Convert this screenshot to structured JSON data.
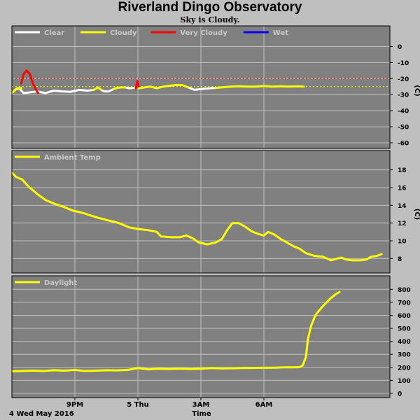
{
  "header": {
    "title": "Riverland Dingo Observatory",
    "subtitle": "Sky is Cloudy."
  },
  "footer": {
    "date_label": "4 Wed May 2016",
    "x_title": "Time"
  },
  "colors": {
    "background": "#bfbfbf",
    "plot_bg": "#808080",
    "grid": "#bfbfbf",
    "clear": "#ffffff",
    "cloudy": "#ffff00",
    "very_cloudy": "#ff0000",
    "wet": "#0000ff"
  },
  "chart_data": [
    {
      "type": "line",
      "name": "sky-temperature",
      "ylabel": "(C)",
      "ylim": [
        -60,
        5
      ],
      "yticks": [
        0,
        -10,
        -20,
        -30,
        -40,
        -50,
        -60
      ],
      "thresholds": [
        {
          "value": -20,
          "color": "#ff0000"
        },
        {
          "value": -25,
          "color": "#ffff00"
        }
      ],
      "legend": [
        {
          "label": "Clear",
          "color": "#ffffff"
        },
        {
          "label": "Cloudy",
          "color": "#ffff00"
        },
        {
          "label": "Very Cloudy",
          "color": "#ff0000"
        },
        {
          "label": "Wet",
          "color": "#0000ff"
        }
      ],
      "series": [
        {
          "name": "Clear",
          "color": "#ffffff",
          "segments": [
            [
              [
                18.0,
                -29
              ],
              [
                18.15,
                -27
              ],
              [
                18.35,
                -26
              ],
              [
                18.55,
                -29
              ],
              [
                18.9,
                -28.5
              ],
              [
                19.2,
                -28
              ],
              [
                19.6,
                -29
              ],
              [
                20.0,
                -27.5
              ],
              [
                20.4,
                -28
              ],
              [
                20.8,
                -28.2
              ],
              [
                21.2,
                -27
              ],
              [
                21.6,
                -27.5
              ],
              [
                21.9,
                -27
              ]
            ],
            [
              [
                22.25,
                -27
              ],
              [
                22.4,
                -28
              ],
              [
                22.6,
                -28
              ],
              [
                22.85,
                -26.5
              ]
            ],
            [
              [
                23.4,
                -25.5
              ],
              [
                23.6,
                -26
              ],
              [
                23.9,
                -25.6
              ]
            ],
            [
              [
                26.4,
                -25.5
              ],
              [
                26.7,
                -27
              ],
              [
                27.0,
                -26.5
              ],
              [
                27.4,
                -26
              ],
              [
                27.7,
                -25.8
              ]
            ]
          ]
        },
        {
          "name": "Very Cloudy",
          "color": "#ff0000",
          "segments": [
            [
              [
                18.45,
                -23
              ],
              [
                18.55,
                -17.5
              ],
              [
                18.7,
                -15
              ],
              [
                18.85,
                -17
              ],
              [
                19.0,
                -23
              ],
              [
                19.15,
                -27
              ],
              [
                19.25,
                -29
              ]
            ],
            [
              [
                23.9,
                -26
              ],
              [
                23.98,
                -21.5
              ],
              [
                24.05,
                -26
              ]
            ]
          ]
        },
        {
          "name": "Cloudy",
          "color": "#ffff00",
          "segments": [
            [
              [
                18.0,
                -29
              ],
              [
                18.2,
                -26.5
              ],
              [
                18.3,
                -25.8
              ],
              [
                18.45,
                -26
              ]
            ],
            [
              [
                21.9,
                -27
              ],
              [
                22.1,
                -25.5
              ],
              [
                22.25,
                -27
              ]
            ],
            [
              [
                22.85,
                -26.5
              ],
              [
                23.0,
                -25.8
              ],
              [
                23.2,
                -25.5
              ],
              [
                23.4,
                -25.5
              ]
            ],
            [
              [
                24.05,
                -26
              ],
              [
                24.3,
                -25.5
              ],
              [
                24.6,
                -25
              ],
              [
                24.9,
                -26
              ],
              [
                25.2,
                -25
              ],
              [
                25.5,
                -24.5
              ],
              [
                25.8,
                -24
              ],
              [
                26.1,
                -24
              ],
              [
                26.4,
                -25.5
              ]
            ],
            [
              [
                27.7,
                -25.8
              ],
              [
                28.0,
                -25.5
              ],
              [
                28.4,
                -25
              ],
              [
                28.8,
                -24.8
              ],
              [
                29.2,
                -25
              ],
              [
                29.6,
                -25
              ],
              [
                30.0,
                -24.6
              ],
              [
                30.4,
                -25
              ],
              [
                30.8,
                -24.8
              ],
              [
                31.2,
                -25
              ],
              [
                31.6,
                -24.8
              ],
              [
                31.9,
                -25
              ]
            ]
          ]
        }
      ]
    },
    {
      "type": "line",
      "name": "ambient-temperature",
      "ylabel": "(C)",
      "ylim": [
        7,
        19
      ],
      "yticks": [
        8,
        10,
        12,
        14,
        16,
        18
      ],
      "legend": [
        {
          "label": "Ambient Temp",
          "color": "#ffff00"
        }
      ],
      "series": [
        {
          "name": "Ambient Temp",
          "color": "#ffff00",
          "points": [
            [
              18.0,
              17.7
            ],
            [
              18.2,
              17.2
            ],
            [
              18.5,
              16.9
            ],
            [
              18.8,
              16.1
            ],
            [
              19.2,
              15.3
            ],
            [
              19.6,
              14.6
            ],
            [
              20.0,
              14.2
            ],
            [
              20.5,
              13.8
            ],
            [
              20.9,
              13.4
            ],
            [
              21.3,
              13.2
            ],
            [
              21.7,
              12.9
            ],
            [
              22.1,
              12.6
            ],
            [
              22.6,
              12.3
            ],
            [
              23.1,
              12.0
            ],
            [
              23.6,
              11.5
            ],
            [
              24.1,
              11.3
            ],
            [
              24.5,
              11.2
            ],
            [
              24.9,
              11.0
            ],
            [
              25.1,
              10.5
            ],
            [
              25.6,
              10.4
            ],
            [
              26.0,
              10.4
            ],
            [
              26.3,
              10.6
            ],
            [
              26.6,
              10.3
            ],
            [
              26.9,
              9.8
            ],
            [
              27.3,
              9.6
            ],
            [
              27.7,
              9.8
            ],
            [
              28.0,
              10.2
            ],
            [
              28.25,
              11.2
            ],
            [
              28.5,
              12.0
            ],
            [
              28.8,
              12.0
            ],
            [
              29.1,
              11.6
            ],
            [
              29.4,
              11.1
            ],
            [
              29.7,
              10.8
            ],
            [
              30.0,
              10.6
            ],
            [
              30.2,
              11.0
            ],
            [
              30.5,
              10.7
            ],
            [
              30.8,
              10.2
            ],
            [
              31.1,
              9.8
            ],
            [
              31.4,
              9.4
            ],
            [
              31.7,
              9.1
            ],
            [
              32.0,
              8.6
            ],
            [
              32.4,
              8.3
            ],
            [
              32.8,
              8.2
            ],
            [
              33.0,
              8.0
            ],
            [
              33.2,
              7.8
            ],
            [
              33.5,
              8.0
            ],
            [
              33.7,
              8.1
            ],
            [
              33.9,
              7.9
            ],
            [
              34.2,
              7.8
            ],
            [
              34.6,
              7.8
            ],
            [
              34.9,
              7.9
            ],
            [
              35.1,
              8.2
            ],
            [
              35.4,
              8.3
            ],
            [
              35.6,
              8.5
            ]
          ]
        }
      ]
    },
    {
      "type": "line",
      "name": "daylight",
      "ylim": [
        0,
        850
      ],
      "yticks": [
        0,
        100,
        200,
        300,
        400,
        500,
        600,
        700,
        800
      ],
      "xticks": [
        {
          "value": 21,
          "label": "9PM"
        },
        {
          "value": 24,
          "label": "5 Thu"
        },
        {
          "value": 27,
          "label": "3AM"
        },
        {
          "value": 30,
          "label": "6AM"
        }
      ],
      "xlim": [
        18,
        36
      ],
      "legend": [
        {
          "label": "Daylight",
          "color": "#ffff00"
        }
      ],
      "series": [
        {
          "name": "Daylight",
          "color": "#ffff00",
          "points": [
            [
              18.0,
              170
            ],
            [
              18.5,
              172
            ],
            [
              19.0,
              175
            ],
            [
              19.5,
              172
            ],
            [
              20.0,
              178
            ],
            [
              20.5,
              175
            ],
            [
              21.0,
              180
            ],
            [
              21.5,
              172
            ],
            [
              22.0,
              175
            ],
            [
              22.5,
              178
            ],
            [
              23.0,
              177
            ],
            [
              23.5,
              180
            ],
            [
              24.0,
              195
            ],
            [
              24.5,
              185
            ],
            [
              25.0,
              190
            ],
            [
              25.5,
              188
            ],
            [
              26.0,
              190
            ],
            [
              26.5,
              188
            ],
            [
              27.0,
              190
            ],
            [
              27.5,
              195
            ],
            [
              28.0,
              192
            ],
            [
              28.5,
              193
            ],
            [
              29.0,
              195
            ],
            [
              29.5,
              196
            ],
            [
              30.0,
              197
            ],
            [
              30.5,
              198
            ],
            [
              31.0,
              200
            ],
            [
              31.4,
              200
            ],
            [
              31.7,
              202
            ],
            [
              31.85,
              215
            ],
            [
              32.0,
              280
            ],
            [
              32.1,
              420
            ],
            [
              32.25,
              520
            ],
            [
              32.45,
              600
            ],
            [
              32.75,
              660
            ],
            [
              33.1,
              720
            ],
            [
              33.4,
              760
            ],
            [
              33.6,
              780
            ]
          ]
        }
      ]
    }
  ]
}
